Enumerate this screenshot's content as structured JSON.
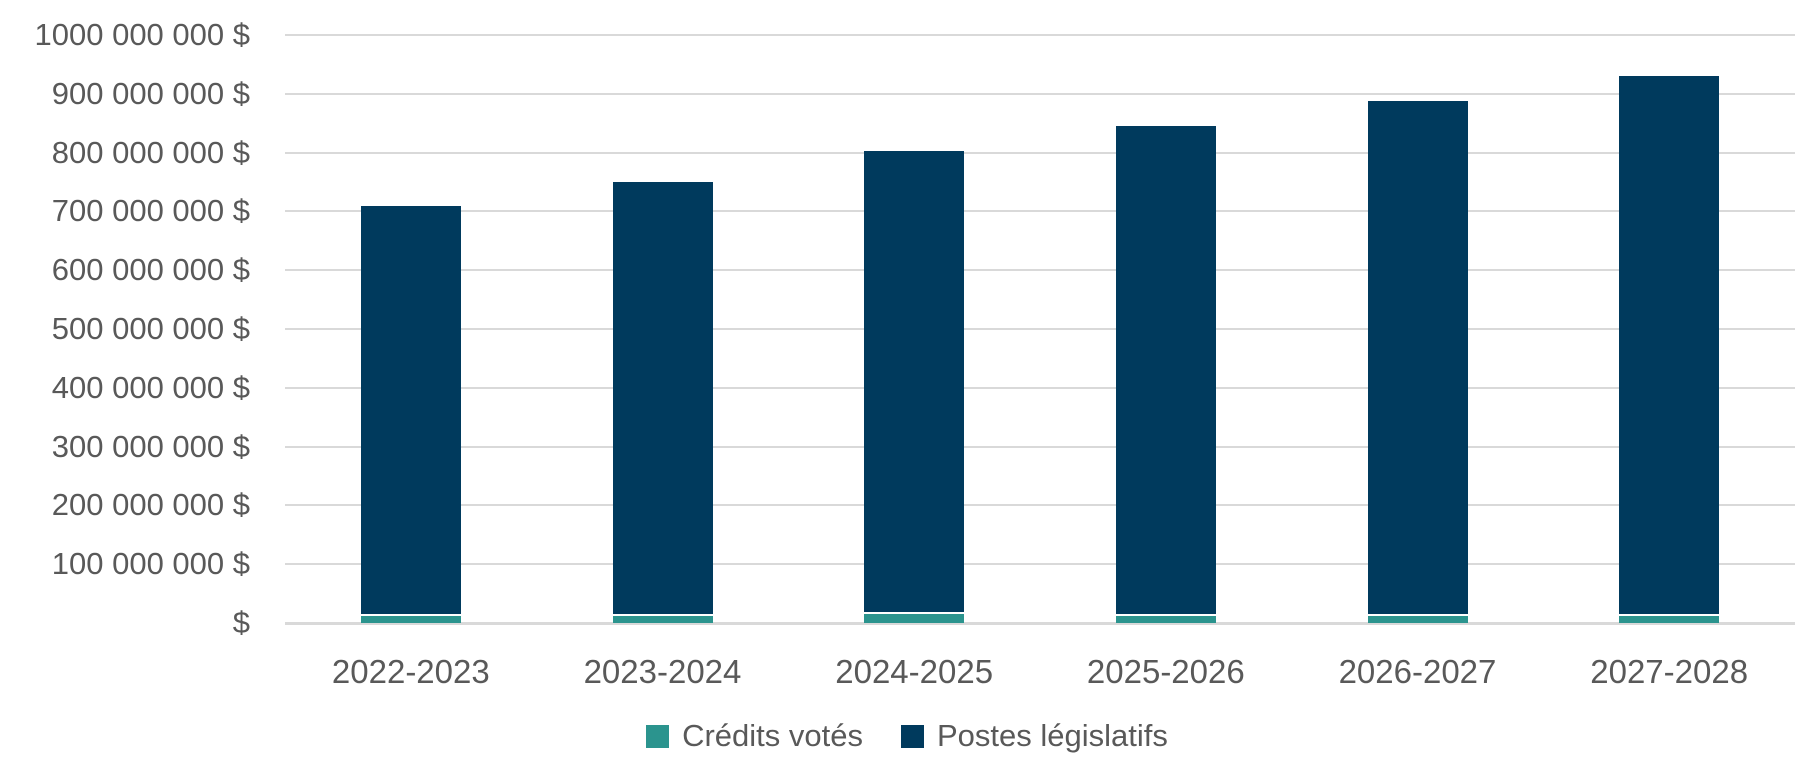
{
  "chart": {
    "background_color": "#ffffff",
    "text_color": "#595959",
    "gridline_color": "#d9d9d9",
    "separator_color": "#ffffff"
  },
  "chart_data": {
    "type": "bar",
    "stacked": true,
    "title": "",
    "xlabel": "",
    "ylabel": "",
    "categories": [
      "2022-2023",
      "2023-2024",
      "2024-2025",
      "2025-2026",
      "2026-2027",
      "2027-2028"
    ],
    "series": [
      {
        "name": "Crédits votés",
        "color": "#2b948e",
        "values": [
          12000000,
          12000000,
          15000000,
          12000000,
          12000000,
          12000000
        ]
      },
      {
        "name": "Postes législatifs",
        "color": "#003a5d",
        "values": [
          698000000,
          738000000,
          788000000,
          833000000,
          876000000,
          918000000
        ]
      }
    ],
    "totals": [
      710000000,
      750000000,
      803000000,
      845000000,
      888000000,
      930000000
    ],
    "ylim": [
      0,
      1000000000
    ],
    "ytick_step": 100000000,
    "ytick_labels": [
      "$",
      "100 000 000 $",
      "200 000 000 $",
      "300 000 000 $",
      "400 000 000 $",
      "500 000 000 $",
      "600 000 000 $",
      "700 000 000 $",
      "800 000 000 $",
      "900 000 000 $",
      "1000 000 000 $"
    ],
    "grid": true,
    "legend_position": "bottom"
  },
  "legend": {
    "items": [
      {
        "label": "Crédits votés",
        "color": "#2b948e"
      },
      {
        "label": "Postes législatifs",
        "color": "#003a5d"
      }
    ]
  }
}
